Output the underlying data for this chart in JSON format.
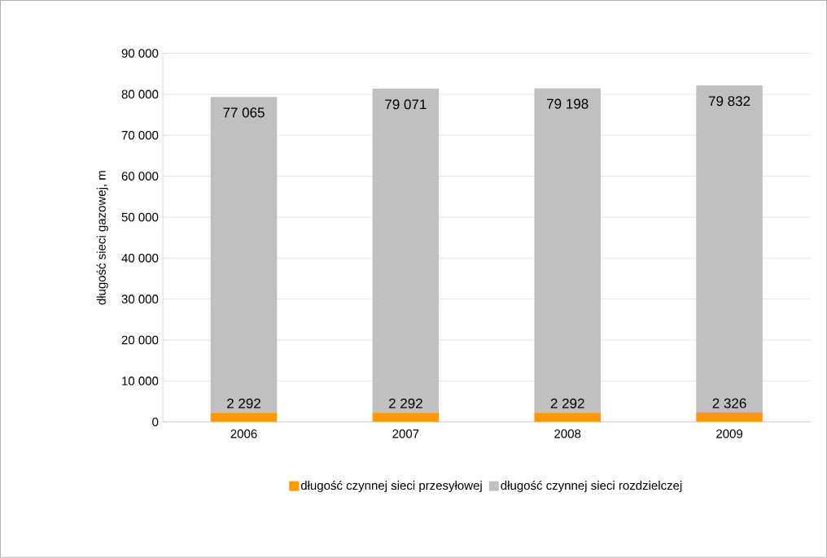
{
  "chart_data": {
    "type": "bar",
    "stacked": true,
    "ylabel": "długość sieci gazowej, m",
    "categories": [
      "2006",
      "2007",
      "2008",
      "2009"
    ],
    "series": [
      {
        "name": "długość czynnej sieci przesyłowej",
        "color": "#ff9900",
        "values": [
          2292,
          2292,
          2292,
          2326
        ],
        "value_labels": [
          "2 292",
          "2 292",
          "2 292",
          "2 326"
        ]
      },
      {
        "name": "długość czynnej sieci rozdzielczej",
        "color": "#c0c0c0",
        "values": [
          77065,
          79071,
          79198,
          79832
        ],
        "value_labels": [
          "77 065",
          "79 071",
          "79 198",
          "79 832"
        ]
      }
    ],
    "ylim": [
      0,
      90000
    ],
    "yticks": [
      {
        "value": 0,
        "label": "0"
      },
      {
        "value": 10000,
        "label": "10 000"
      },
      {
        "value": 20000,
        "label": "20 000"
      },
      {
        "value": 30000,
        "label": "30 000"
      },
      {
        "value": 40000,
        "label": "40 000"
      },
      {
        "value": 50000,
        "label": "50 000"
      },
      {
        "value": 60000,
        "label": "60 000"
      },
      {
        "value": 70000,
        "label": "70 000"
      },
      {
        "value": 80000,
        "label": "80 000"
      },
      {
        "value": 90000,
        "label": "90 000"
      }
    ],
    "grid": "y",
    "legend": "bottom"
  }
}
